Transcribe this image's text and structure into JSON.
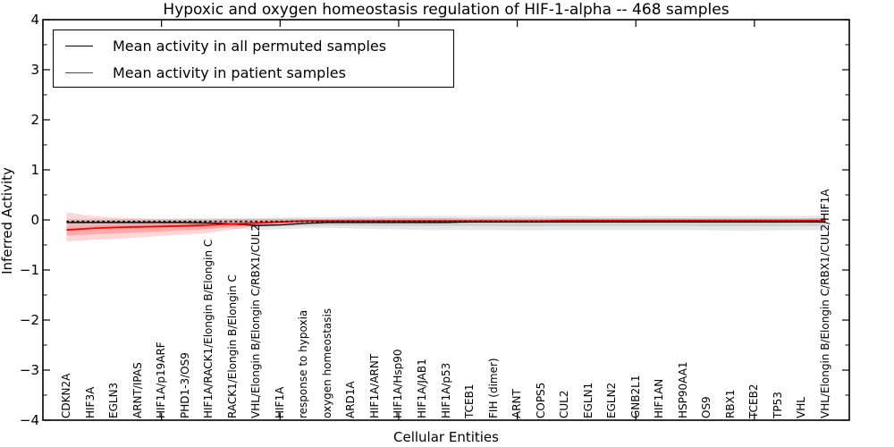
{
  "chart_data": {
    "type": "line",
    "title": "Hypoxic and oxygen homeostasis regulation of HIF-1-alpha -- 468 samples",
    "xlabel": "Cellular Entities",
    "ylabel": "Inferred Activity",
    "ylim": [
      -4,
      4
    ],
    "grid": false,
    "yticks": {
      "values": [
        4,
        3,
        2,
        1,
        0,
        -1,
        -2,
        -3,
        -4
      ],
      "labels": [
        "4",
        "3",
        "2",
        "1",
        "0",
        "−1",
        "−2",
        "−3",
        "−4"
      ]
    },
    "x_major_tick_positions": [
      5,
      10,
      15,
      20,
      25,
      30
    ],
    "categories": [
      "CDKN2A",
      "HIF3A",
      "EGLN3",
      "ARNT/IPAS",
      "HIF1A/p19ARF",
      "PHD1-3/OS9",
      "HIF1A/RACK1/Elongin B/Elongin C",
      "RACK1/Elongin B/Elongin C",
      "VHL/Elongin B/Elongin C/RBX1/CUL2",
      "HIF1A",
      "response to hypoxia",
      "oxygen homeostasis",
      "ARD1A",
      "HIF1A/ARNT",
      "HIF1A/Hsp90",
      "HIF1A/JAB1",
      "HIF1A/p53",
      "TCEB1",
      "FIH (dimer)",
      "ARNT",
      "COPS5",
      "CUL2",
      "EGLN1",
      "EGLN2",
      "GNB2L1",
      "HIF1AN",
      "HSP90AA1",
      "OS9",
      "RBX1",
      "TCEB2",
      "TP53",
      "VHL",
      "VHL/Elongin B/Elongin C/RBX1/CUL2/HIF1A"
    ],
    "series": [
      {
        "name": "Mean activity in all permuted samples",
        "color": "#000000",
        "style": "solid",
        "width": 1.3,
        "values": [
          -0.05,
          -0.05,
          -0.05,
          -0.05,
          -0.05,
          -0.05,
          -0.06,
          -0.08,
          -0.11,
          -0.1,
          -0.07,
          -0.05,
          -0.05,
          -0.05,
          -0.05,
          -0.05,
          -0.05,
          -0.04,
          -0.04,
          -0.04,
          -0.04,
          -0.04,
          -0.04,
          -0.04,
          -0.04,
          -0.04,
          -0.04,
          -0.04,
          -0.04,
          -0.04,
          -0.04,
          -0.04,
          -0.04
        ]
      },
      {
        "name": "Mean activity in patient samples",
        "color": "#ff0000",
        "style": "solid",
        "width": 1.8,
        "values": [
          -0.2,
          -0.17,
          -0.15,
          -0.14,
          -0.13,
          -0.12,
          -0.1,
          -0.08,
          -0.06,
          -0.04,
          -0.02,
          -0.02,
          -0.02,
          -0.02,
          -0.02,
          -0.02,
          -0.02,
          -0.02,
          -0.02,
          -0.02,
          -0.02,
          -0.01,
          -0.01,
          -0.01,
          -0.01,
          -0.01,
          -0.01,
          -0.01,
          -0.01,
          -0.01,
          -0.01,
          -0.01,
          -0.01
        ]
      },
      {
        "name": "zero reference (dotted)",
        "color": "#000000",
        "style": "dotted",
        "width": 1.6,
        "values": [
          -0.03,
          -0.03,
          -0.03,
          -0.03,
          -0.03,
          -0.03,
          -0.03,
          -0.03,
          -0.03,
          -0.03,
          -0.03,
          -0.03,
          -0.03,
          -0.03,
          -0.03,
          -0.03,
          -0.03,
          -0.03,
          -0.03,
          -0.03,
          -0.03,
          -0.03,
          -0.03,
          -0.03,
          -0.03,
          -0.03,
          -0.03,
          -0.03,
          -0.03,
          -0.03,
          -0.03,
          -0.03,
          -0.03
        ]
      }
    ],
    "bands": [
      {
        "name": "permuted-spread-outer",
        "color": "#000000",
        "alpha": 0.09,
        "top": [
          0.02,
          0.02,
          0.02,
          0.02,
          0.02,
          0.03,
          0.03,
          0.03,
          0.04,
          0.05,
          0.06,
          0.06,
          0.07,
          0.07,
          0.08,
          0.08,
          0.08,
          0.08,
          0.08,
          0.08,
          0.08,
          0.08,
          0.07,
          0.07,
          0.07,
          0.07,
          0.07,
          0.08,
          0.08,
          0.08,
          0.08,
          0.08,
          0.09
        ],
        "bottom": [
          -0.12,
          -0.12,
          -0.12,
          -0.13,
          -0.13,
          -0.14,
          -0.15,
          -0.17,
          -0.2,
          -0.19,
          -0.17,
          -0.16,
          -0.17,
          -0.18,
          -0.19,
          -0.2,
          -0.2,
          -0.2,
          -0.2,
          -0.21,
          -0.21,
          -0.2,
          -0.2,
          -0.2,
          -0.2,
          -0.2,
          -0.2,
          -0.21,
          -0.22,
          -0.22,
          -0.21,
          -0.2,
          -0.21
        ]
      },
      {
        "name": "permuted-spread-inner",
        "color": "#000000",
        "alpha": 0.1,
        "top": [
          0.0,
          0.0,
          0.0,
          0.0,
          0.0,
          0.0,
          0.0,
          0.01,
          0.01,
          0.02,
          0.02,
          0.02,
          0.03,
          0.03,
          0.03,
          0.03,
          0.03,
          0.03,
          0.03,
          0.03,
          0.03,
          0.03,
          0.03,
          0.03,
          0.03,
          0.03,
          0.03,
          0.03,
          0.03,
          0.03,
          0.03,
          0.03,
          0.04
        ],
        "bottom": [
          -0.08,
          -0.08,
          -0.08,
          -0.09,
          -0.09,
          -0.09,
          -0.1,
          -0.12,
          -0.14,
          -0.13,
          -0.12,
          -0.11,
          -0.11,
          -0.12,
          -0.12,
          -0.12,
          -0.12,
          -0.12,
          -0.12,
          -0.13,
          -0.13,
          -0.12,
          -0.12,
          -0.12,
          -0.12,
          -0.12,
          -0.12,
          -0.13,
          -0.13,
          -0.13,
          -0.13,
          -0.12,
          -0.13
        ]
      },
      {
        "name": "patient-spread-outer",
        "color": "#ff0000",
        "alpha": 0.16,
        "top": [
          0.15,
          0.08,
          0.05,
          0.03,
          0.02,
          0.02,
          0.02,
          0.02,
          0.02,
          0.02,
          0.02,
          0.02,
          0.02,
          0.02,
          0.03,
          0.03,
          0.03,
          0.02,
          0.02,
          0.02,
          0.02,
          0.02,
          0.02,
          0.02,
          0.02,
          0.02,
          0.02,
          0.02,
          0.02,
          0.02,
          0.02,
          0.02,
          0.03
        ],
        "bottom": [
          -0.43,
          -0.4,
          -0.38,
          -0.35,
          -0.32,
          -0.29,
          -0.26,
          -0.19,
          -0.13,
          -0.09,
          -0.07,
          -0.06,
          -0.06,
          -0.06,
          -0.06,
          -0.06,
          -0.06,
          -0.05,
          -0.05,
          -0.05,
          -0.05,
          -0.05,
          -0.05,
          -0.05,
          -0.05,
          -0.05,
          -0.05,
          -0.05,
          -0.05,
          -0.05,
          -0.05,
          -0.05,
          -0.06
        ]
      },
      {
        "name": "patient-spread-inner",
        "color": "#ff0000",
        "alpha": 0.2,
        "top": [
          -0.12,
          -0.11,
          -0.1,
          -0.1,
          -0.09,
          -0.08,
          -0.07,
          -0.05,
          -0.04,
          -0.03,
          -0.01,
          -0.01,
          -0.01,
          -0.01,
          -0.01,
          -0.01,
          -0.01,
          -0.01,
          -0.01,
          -0.01,
          -0.01,
          -0.01,
          -0.01,
          -0.01,
          -0.01,
          -0.01,
          -0.01,
          -0.01,
          -0.01,
          -0.01,
          -0.01,
          -0.01,
          -0.01
        ],
        "bottom": [
          -0.31,
          -0.29,
          -0.27,
          -0.25,
          -0.23,
          -0.21,
          -0.18,
          -0.13,
          -0.09,
          -0.06,
          -0.04,
          -0.03,
          -0.03,
          -0.03,
          -0.03,
          -0.03,
          -0.03,
          -0.03,
          -0.03,
          -0.03,
          -0.03,
          -0.03,
          -0.03,
          -0.03,
          -0.03,
          -0.03,
          -0.03,
          -0.03,
          -0.03,
          -0.03,
          -0.03,
          -0.03,
          -0.03
        ]
      }
    ],
    "legend": {
      "position": "upper left",
      "items": [
        {
          "label": "Mean activity in all permuted samples",
          "color": "#000000"
        },
        {
          "label": "Mean activity in patient samples",
          "color": "#ff0000"
        }
      ]
    },
    "colors": {
      "axes": "#000000",
      "background": "#ffffff"
    }
  }
}
